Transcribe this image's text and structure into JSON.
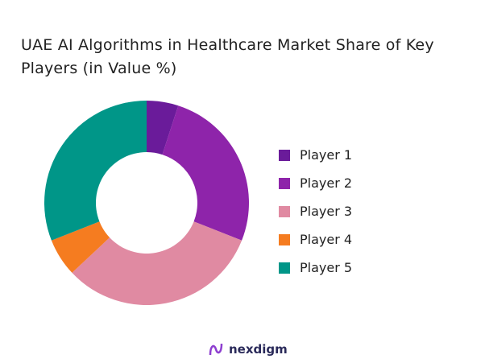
{
  "chart_data": {
    "type": "pie",
    "donut": true,
    "title": "UAE AI Algorithms in Healthcare Market Share of Key Players (in Value %)",
    "categories": [
      "Player 1",
      "Player 2",
      "Player 3",
      "Player 4",
      "Player 5"
    ],
    "values": [
      5,
      26,
      32,
      6,
      31
    ],
    "colors": [
      "#6a1b9a",
      "#8e24aa",
      "#e08aa2",
      "#f57c20",
      "#009688"
    ],
    "legend_position": "right"
  },
  "brand": {
    "name": "nexdigm"
  }
}
